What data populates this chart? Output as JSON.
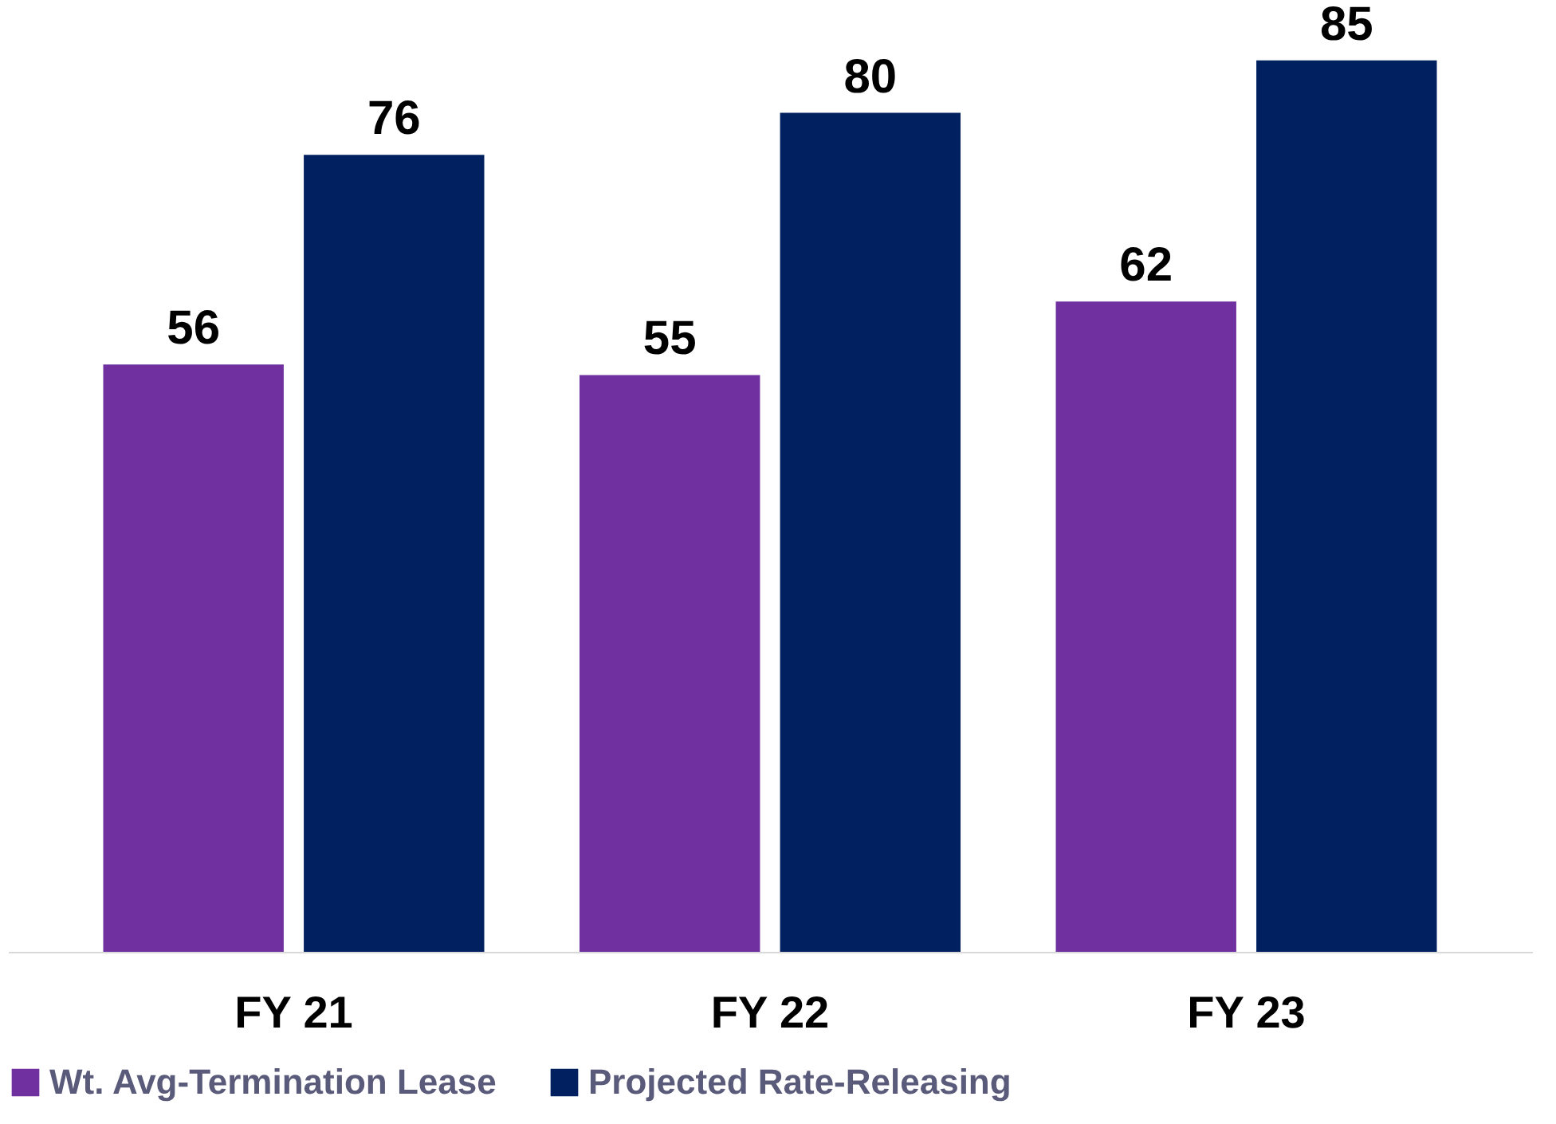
{
  "chart_data": {
    "type": "bar",
    "categories": [
      "FY 21",
      "FY 22",
      "FY 23"
    ],
    "series": [
      {
        "name": "Wt. Avg-Termination Lease",
        "color": "#7030a0",
        "values": [
          56,
          55,
          62
        ]
      },
      {
        "name": "Projected Rate-Releasing",
        "color": "#002060",
        "values": [
          76,
          80,
          85
        ]
      }
    ],
    "data_labels": true,
    "legend": "bottom",
    "grid": false
  }
}
